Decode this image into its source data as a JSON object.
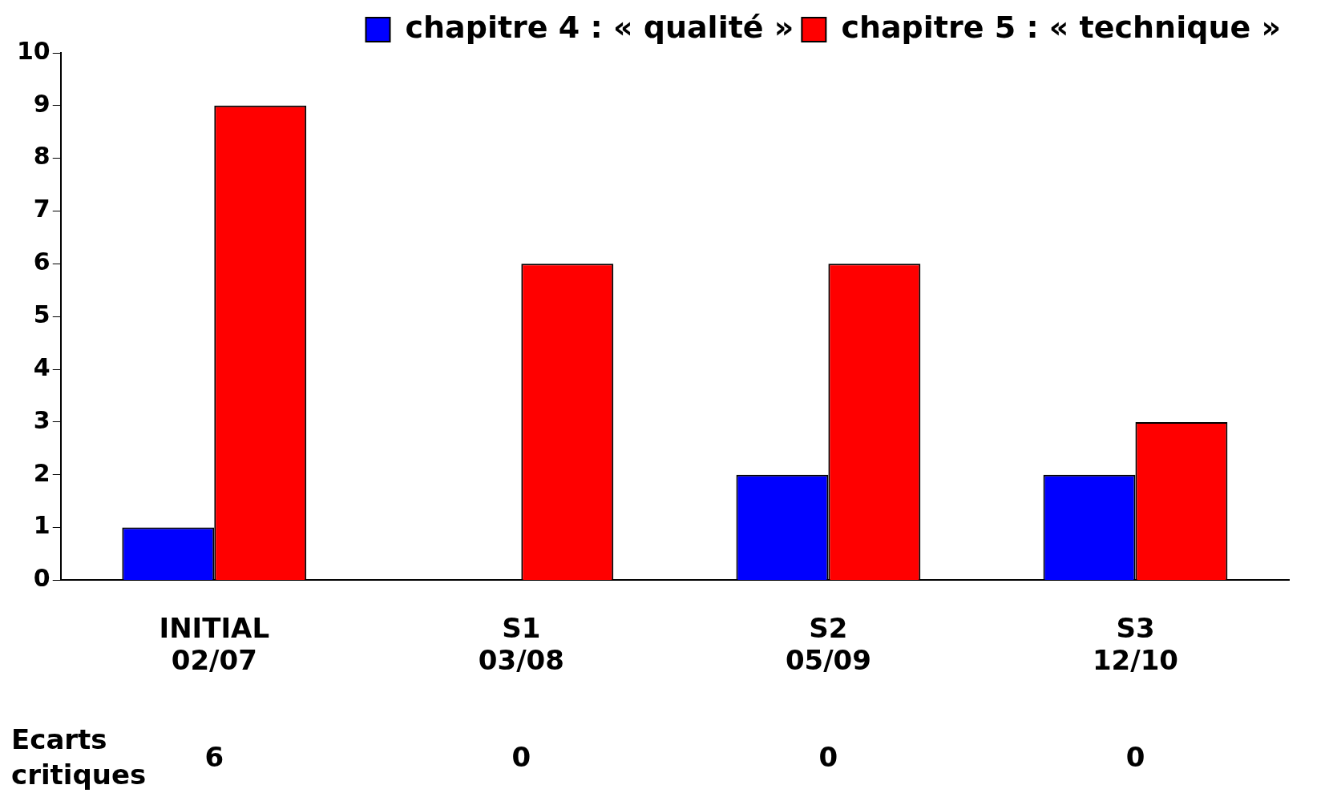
{
  "chart_data": {
    "type": "bar",
    "categories": [
      "INITIAL\n02/07",
      "S1\n03/08",
      "S2\n05/09",
      "S3\n12/10"
    ],
    "series": [
      {
        "name": "chapitre 4 : « qualité »",
        "color": "#0000ff",
        "values": [
          1,
          0,
          2,
          2
        ]
      },
      {
        "name": "chapitre 5 : « technique »",
        "color": "#ff0000",
        "values": [
          9,
          6,
          6,
          3
        ]
      }
    ],
    "ylim": [
      0,
      10
    ],
    "yticks": [
      0,
      1,
      2,
      3,
      4,
      5,
      6,
      7,
      8,
      9,
      10
    ],
    "grid": false,
    "legend": "top right",
    "annotations": [
      "Ecarts critiques",
      "6",
      "0",
      "0",
      "0"
    ]
  }
}
